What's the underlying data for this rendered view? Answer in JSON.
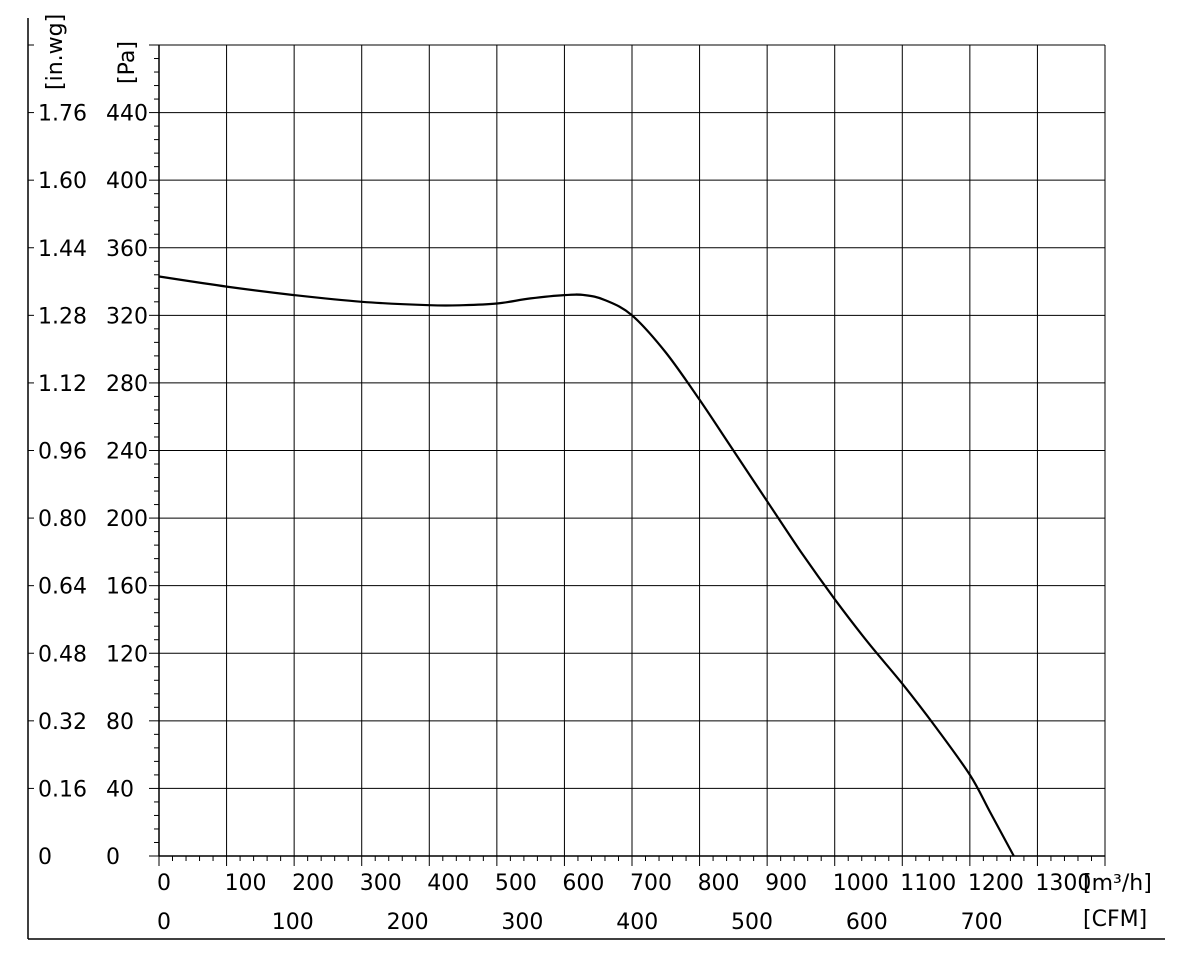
{
  "chart_data": {
    "type": "line",
    "title": "",
    "grid": true,
    "x_primary": {
      "unit_label": "[m³/h]",
      "range": [
        0,
        1400
      ],
      "ticks": [
        0,
        100,
        200,
        300,
        400,
        500,
        600,
        700,
        800,
        900,
        1000,
        1100,
        1200,
        1300
      ],
      "tick_labels": [
        "0",
        "100",
        "200",
        "300",
        "400",
        "500",
        "600",
        "700",
        "800",
        "900",
        "1000",
        "1100",
        "1200",
        "1300"
      ]
    },
    "x_secondary": {
      "unit_label": "[CFM]",
      "ticks": [
        0,
        100,
        200,
        300,
        400,
        500,
        600,
        700
      ],
      "tick_labels": [
        "0",
        "100",
        "200",
        "300",
        "400",
        "500",
        "600",
        "700"
      ]
    },
    "y_primary": {
      "unit_label": "[Pa]",
      "range": [
        0,
        480
      ],
      "ticks": [
        0,
        40,
        80,
        120,
        160,
        200,
        240,
        280,
        320,
        360,
        400,
        440
      ],
      "tick_labels": [
        "0",
        "40",
        "80",
        "120",
        "160",
        "200",
        "240",
        "280",
        "320",
        "360",
        "400",
        "440"
      ]
    },
    "y_secondary": {
      "unit_label": "[in.wg]",
      "tick_labels": [
        "0",
        "0.16",
        "0.32",
        "0.48",
        "0.64",
        "0.80",
        "0.96",
        "1.12",
        "1.28",
        "1.44",
        "1.60",
        "1.76"
      ]
    },
    "series": [
      {
        "x": [
          0,
          100,
          200,
          300,
          400,
          450,
          500,
          550,
          600,
          630,
          660,
          700,
          750,
          800,
          850,
          900,
          950,
          1000,
          1050,
          1100,
          1150,
          1200,
          1230,
          1265
        ],
        "y": [
          343,
          337,
          332,
          328,
          326,
          326,
          327,
          330,
          332,
          332,
          329,
          320,
          298,
          270,
          240,
          210,
          180,
          152,
          126,
          102,
          76,
          48,
          26,
          0
        ]
      }
    ]
  }
}
